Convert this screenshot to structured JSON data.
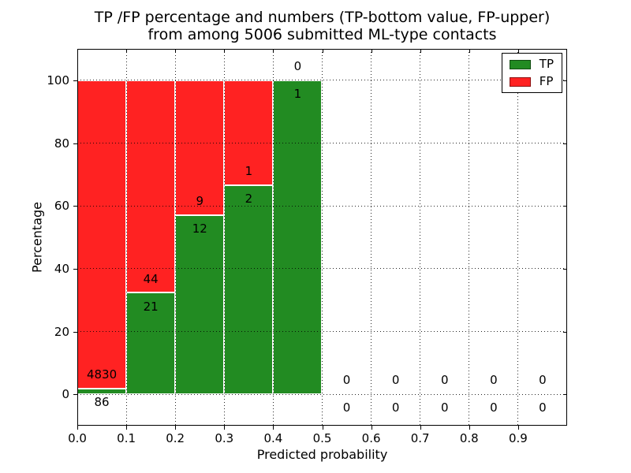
{
  "figure": {
    "title_line1": "TP /FP percentage and numbers (TP-bottom value, FP-upper)",
    "title_line2": "from among 5006 submitted ML-type contacts"
  },
  "chart_data": {
    "type": "bar",
    "stacked": true,
    "normalized_to_percent": true,
    "title": "TP /FP percentage and numbers (TP-bottom value, FP-upper) from among 5006 submitted ML-type contacts",
    "xlabel": "Predicted probability",
    "ylabel": "Percentage",
    "total_contacts_shown_in_title": 5006,
    "bin_edges": [
      0.0,
      0.1,
      0.2,
      0.3,
      0.4,
      0.5,
      0.6,
      0.7,
      0.8,
      0.9,
      1.0
    ],
    "series": [
      {
        "name": "TP",
        "color": "#228B22",
        "counts": [
          86,
          21,
          12,
          2,
          1,
          0,
          0,
          0,
          0,
          0
        ]
      },
      {
        "name": "FP",
        "color": "#FF2222",
        "counts": [
          4830,
          44,
          9,
          1,
          0,
          0,
          0,
          0,
          0,
          0
        ]
      }
    ],
    "tp_percent_per_bin": [
      1.75,
      32.31,
      57.14,
      66.67,
      100.0,
      0,
      0,
      0,
      0,
      0
    ],
    "x_tick_labels": [
      "0.0",
      "0.1",
      "0.2",
      "0.3",
      "0.4",
      "0.5",
      "0.6",
      "0.7",
      "0.8",
      "0.9"
    ],
    "y_tick_labels": [
      "0",
      "20",
      "40",
      "60",
      "80",
      "100"
    ],
    "y_tick_values": [
      0,
      20,
      40,
      60,
      80,
      100
    ],
    "xlim": [
      0.0,
      1.0
    ],
    "ylim": [
      -10,
      110
    ],
    "grid": "dotted",
    "legend": {
      "position": "upper right",
      "entries": [
        {
          "label": "TP",
          "color": "#228B22"
        },
        {
          "label": "FP",
          "color": "#FF2222"
        }
      ]
    }
  },
  "colors": {
    "tp": "#228B22",
    "fp": "#FF2222",
    "background": "#FFFFFF",
    "axis": "#000000",
    "grid": "#000000",
    "text": "#000000"
  }
}
